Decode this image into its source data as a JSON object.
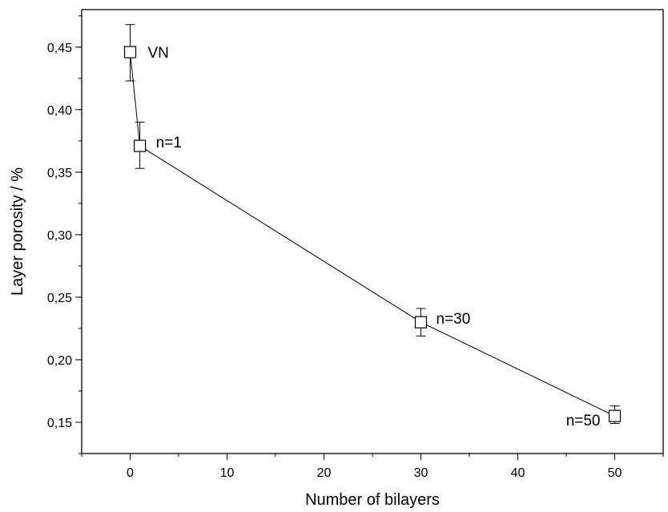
{
  "chart_data": {
    "type": "scatter",
    "title": "",
    "xlabel": "Number of bilayers",
    "ylabel": "Layer porosity  / %",
    "xlim": [
      -5,
      55
    ],
    "ylim": [
      0.125,
      0.48
    ],
    "xticks": [
      0,
      10,
      20,
      30,
      40,
      50
    ],
    "yticks": [
      0.15,
      0.2,
      0.25,
      0.3,
      0.35,
      0.4,
      0.45
    ],
    "xtick_labels": [
      "0",
      "10",
      "20",
      "30",
      "40",
      "50"
    ],
    "ytick_labels": [
      "0,15",
      "0,20",
      "0,25",
      "0,30",
      "0,35",
      "0,40",
      "0,45"
    ],
    "grid": false,
    "legend": "none",
    "marker": "open-square",
    "connected_line": true,
    "line_color": "#000000",
    "series": [
      {
        "points": [
          {
            "x": 0,
            "y": 0.446,
            "err_low": 0.423,
            "err_high": 0.468,
            "label": "VN"
          },
          {
            "x": 1,
            "y": 0.371,
            "err_low": 0.353,
            "err_high": 0.39,
            "label": "n=1"
          },
          {
            "x": 30,
            "y": 0.23,
            "err_low": 0.219,
            "err_high": 0.241,
            "label": "n=30"
          },
          {
            "x": 50,
            "y": 0.155,
            "err_low": 0.149,
            "err_high": 0.163,
            "label": "n=50"
          }
        ]
      }
    ]
  }
}
